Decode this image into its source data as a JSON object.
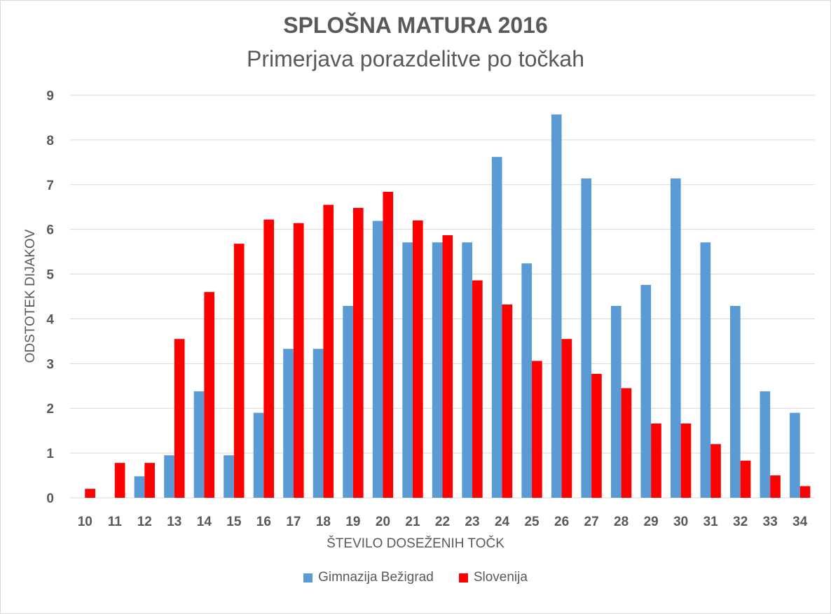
{
  "chart_data": {
    "type": "bar",
    "title": "SPLOŠNA MATURA 2016",
    "subtitle": "Primerjava porazdelitve po točkah",
    "xlabel": "ŠTEVILO DOSEŽENIH TOČK",
    "ylabel": "ODSTOTEK DIJAKOV",
    "ylim": [
      0,
      9
    ],
    "yticks": [
      "0",
      "1",
      "2",
      "3",
      "4",
      "5",
      "6",
      "7",
      "8",
      "9"
    ],
    "grid": true,
    "legend_position": "bottom",
    "categories": [
      "10",
      "11",
      "12",
      "13",
      "14",
      "15",
      "16",
      "17",
      "18",
      "19",
      "20",
      "21",
      "22",
      "23",
      "24",
      "25",
      "26",
      "27",
      "28",
      "29",
      "30",
      "31",
      "32",
      "33",
      "34"
    ],
    "series": [
      {
        "name": "Gimnazija Bežigrad",
        "color": "#5b9bd5",
        "values": [
          0,
          0,
          0.48,
          0.95,
          2.38,
          0.95,
          1.9,
          3.33,
          3.33,
          4.29,
          6.19,
          5.71,
          5.71,
          5.71,
          7.62,
          5.24,
          8.57,
          7.14,
          4.29,
          4.76,
          7.14,
          5.71,
          4.29,
          2.38,
          1.9
        ]
      },
      {
        "name": "Slovenija",
        "color": "#ff0000",
        "values": [
          0.2,
          0.78,
          0.78,
          3.55,
          4.6,
          5.68,
          6.22,
          6.14,
          6.55,
          6.48,
          6.84,
          6.2,
          5.87,
          4.86,
          4.32,
          3.06,
          3.55,
          2.77,
          2.45,
          1.66,
          1.66,
          1.2,
          0.83,
          0.5,
          0.26
        ]
      }
    ]
  }
}
